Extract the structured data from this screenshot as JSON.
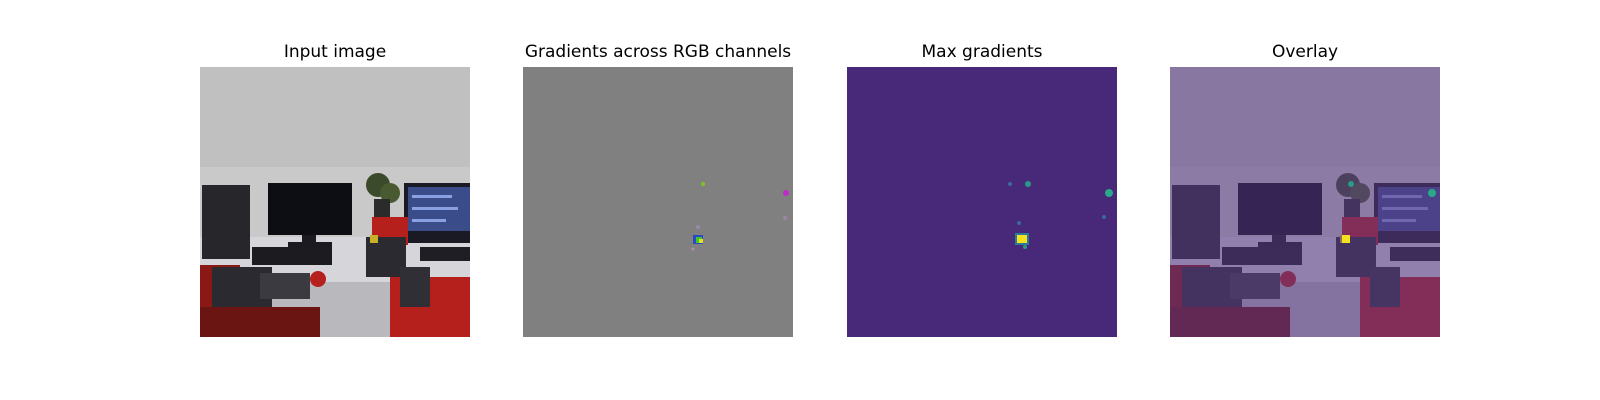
{
  "figure": {
    "panels": [
      {
        "title": "Input image",
        "kind": "photo"
      },
      {
        "title": "Gradients across RGB channels",
        "kind": "rgb-gradients"
      },
      {
        "title": "Max gradients",
        "kind": "max-gradients"
      },
      {
        "title": "Overlay",
        "kind": "overlay"
      }
    ],
    "colors": {
      "wall": "#c8c9c8",
      "desk": "#d6d6da",
      "robot_red": "#b5201d",
      "robot_dark": "#2a2a30",
      "monitor_screen": "#3a4c8a",
      "gray_background": "#808080",
      "viridis_low": "#482878",
      "viridis_mid": "#2a9a8a",
      "viridis_high": "#f2e21f",
      "overlay_tint": "#5a3a88"
    }
  }
}
